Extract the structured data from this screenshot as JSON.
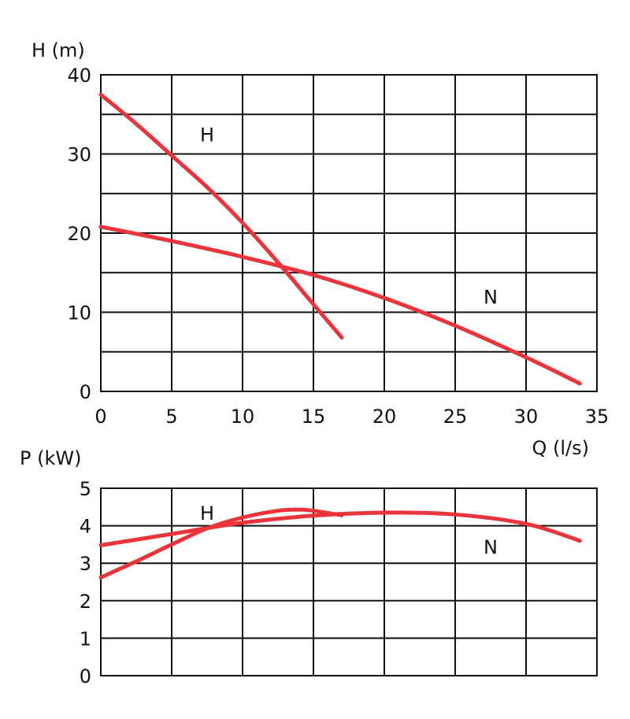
{
  "chart_data": [
    {
      "type": "line",
      "title": "",
      "ylabel": "H (m)",
      "xlabel": "Q (l/s)",
      "xlim": [
        0,
        35
      ],
      "ylim": [
        0,
        40
      ],
      "x_ticks": [
        0,
        5,
        10,
        15,
        20,
        25,
        30,
        35
      ],
      "y_ticks": [
        0,
        10,
        20,
        30,
        40
      ],
      "x_grid_step": 5,
      "y_grid_step": 5,
      "grid": true,
      "series_color": "#e8343a",
      "series": [
        {
          "name": "H",
          "x": [
            0,
            2.5,
            5,
            7.5,
            10,
            12.5,
            15,
            17
          ],
          "values": [
            37.5,
            33.8,
            29.8,
            25.8,
            21.3,
            16.3,
            11.0,
            6.8
          ],
          "label_at": [
            7.5,
            32.5
          ]
        },
        {
          "name": "N",
          "x": [
            0,
            5,
            10,
            15,
            20,
            25,
            30,
            33.8
          ],
          "values": [
            20.8,
            19.0,
            17.0,
            14.7,
            11.8,
            8.3,
            4.3,
            1.0
          ],
          "label_at": [
            27.5,
            12.0
          ]
        }
      ]
    },
    {
      "type": "line",
      "title": "",
      "ylabel": "P (kW)",
      "xlabel": "",
      "xlim": [
        0,
        35
      ],
      "ylim": [
        0,
        5
      ],
      "x_ticks": [],
      "y_ticks": [
        0,
        1,
        2,
        3,
        4,
        5
      ],
      "x_grid_step": 5,
      "y_grid_step": 1,
      "grid": true,
      "series_color": "#e8343a",
      "series": [
        {
          "name": "H",
          "x": [
            0,
            2.5,
            5,
            7.5,
            10,
            12.5,
            14,
            15,
            17
          ],
          "values": [
            2.62,
            3.05,
            3.5,
            3.93,
            4.22,
            4.4,
            4.43,
            4.4,
            4.28
          ],
          "label_at": [
            7.5,
            4.35
          ]
        },
        {
          "name": "N",
          "x": [
            0,
            5,
            10,
            15,
            20,
            25,
            30,
            33.8
          ],
          "values": [
            3.48,
            3.78,
            4.08,
            4.27,
            4.35,
            4.3,
            4.05,
            3.6
          ],
          "label_at": [
            27.5,
            3.45
          ]
        }
      ]
    }
  ]
}
